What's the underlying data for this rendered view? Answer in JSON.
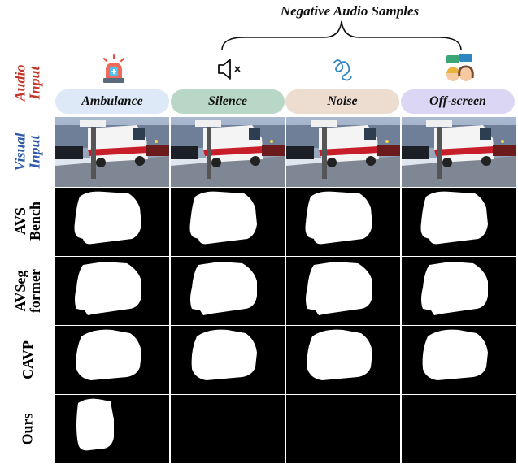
{
  "negative_title": "Negative Audio Samples",
  "row_labels": {
    "audio": [
      "Audio",
      "Input"
    ],
    "visual": [
      "Visual",
      "Input"
    ],
    "avsbench": [
      "AVS",
      "Bench"
    ],
    "avsegformer": [
      "AVSeg",
      "former"
    ],
    "cavp": "CAVP",
    "ours": "Ours"
  },
  "columns": [
    {
      "label": "Ambulance",
      "color": "#dde9f7",
      "icon": "ambulance-siren-icon"
    },
    {
      "label": "Silence",
      "color": "#b9d7c6",
      "icon": "speaker-muted-icon"
    },
    {
      "label": "Noise",
      "color": "#eddcd0",
      "icon": "noise-squiggle-icon"
    },
    {
      "label": "Off-screen",
      "color": "#dcd6f5",
      "icon": "people-talking-icon"
    }
  ],
  "colors": {
    "audio_label": "#c0392b",
    "visual_label": "#2e5aa8"
  }
}
